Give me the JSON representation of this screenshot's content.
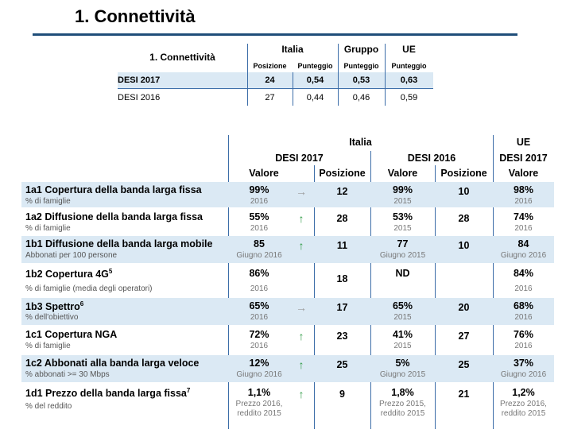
{
  "title": "1. Connettività",
  "summary": {
    "row_header": "1. Connettività",
    "groups": {
      "italia": "Italia",
      "gruppo": "Gruppo",
      "ue": "UE"
    },
    "sub": {
      "posizione": "Posizione",
      "punteggio": "Punteggio"
    },
    "rows": [
      {
        "label": "DESI 2017",
        "pos": "24",
        "it": "0,54",
        "grp": "0,53",
        "ue": "0,63"
      },
      {
        "label": "DESI 2016",
        "pos": "27",
        "it": "0,44",
        "grp": "0,46",
        "ue": "0,59"
      }
    ]
  },
  "main": {
    "header": {
      "italia": "Italia",
      "ue": "UE",
      "desi2017": "DESI 2017",
      "desi2016": "DESI 2016",
      "ue_desi2017": "DESI 2017",
      "valore": "Valore",
      "posizione": "Posizione"
    },
    "rows": [
      {
        "name": "1a1 Copertura della banda larga fissa",
        "sup": "",
        "sub": "% di famiglie",
        "v17": "99%",
        "y17": "2016",
        "trend": "flat",
        "p17": "12",
        "v16": "99%",
        "y16": "2015",
        "p16": "10",
        "ue": "98%",
        "yue": "2016",
        "shaded": true
      },
      {
        "name": "1a2 Diffusione della banda larga fissa",
        "sup": "",
        "sub": "% di famiglie",
        "v17": "55%",
        "y17": "2016",
        "trend": "up",
        "p17": "28",
        "v16": "53%",
        "y16": "2015",
        "p16": "28",
        "ue": "74%",
        "yue": "2016",
        "shaded": false
      },
      {
        "name": "1b1 Diffusione della banda larga mobile",
        "sup": "",
        "sub": "Abbonati per 100 persone",
        "v17": "85",
        "y17": "Giugno 2016",
        "trend": "up",
        "p17": "11",
        "v16": "77",
        "y16": "Giugno 2015",
        "p16": "10",
        "ue": "84",
        "yue": "Giugno 2016",
        "shaded": true
      },
      {
        "name": "1b2 Copertura 4G",
        "sup": "5",
        "sub": "% di famiglie (media degli operatori)",
        "v17": "86%",
        "y17": "2016",
        "trend": "",
        "p17": "18",
        "v16": "ND",
        "y16": "",
        "p16": "",
        "ue": "84%",
        "yue": "2016",
        "shaded": false
      },
      {
        "name": "1b3 Spettro",
        "sup": "6",
        "sub": "% dell'obiettivo",
        "v17": "65%",
        "y17": "2016",
        "trend": "flat",
        "p17": "17",
        "v16": "65%",
        "y16": "2015",
        "p16": "20",
        "ue": "68%",
        "yue": "2016",
        "shaded": true
      },
      {
        "name": "1c1 Copertura NGA",
        "sup": "",
        "sub": "% di famiglie",
        "v17": "72%",
        "y17": "2016",
        "trend": "up",
        "p17": "23",
        "v16": "41%",
        "y16": "2015",
        "p16": "27",
        "ue": "76%",
        "yue": "2016",
        "shaded": false
      },
      {
        "name": "1c2 Abbonati alla banda larga veloce",
        "sup": "",
        "sub": "% abbonati >= 30 Mbps",
        "v17": "12%",
        "y17": "Giugno 2016",
        "trend": "up",
        "p17": "25",
        "v16": "5%",
        "y16": "Giugno 2015",
        "p16": "25",
        "ue": "37%",
        "yue": "Giugno 2016",
        "shaded": true
      },
      {
        "name": "1d1 Prezzo della banda larga fissa",
        "sup": "7",
        "sub": "% del reddito",
        "v17": "1,1%",
        "y17": "Prezzo 2016,",
        "y17b": "reddito 2015",
        "trend": "up",
        "p17": "9",
        "v16": "1,8%",
        "y16": "Prezzo 2015,",
        "y16b": "reddito 2015",
        "p16": "21",
        "ue": "1,2%",
        "yue": "Prezzo 2016,",
        "yueb": "reddito 2015",
        "shaded": false
      }
    ]
  },
  "colors": {
    "rule": "#1f4e79",
    "band": "#dbe9f4",
    "grid": "#3c6da8",
    "arrow_up": "#2e9a44",
    "arrow_flat": "#9a9a9a"
  }
}
